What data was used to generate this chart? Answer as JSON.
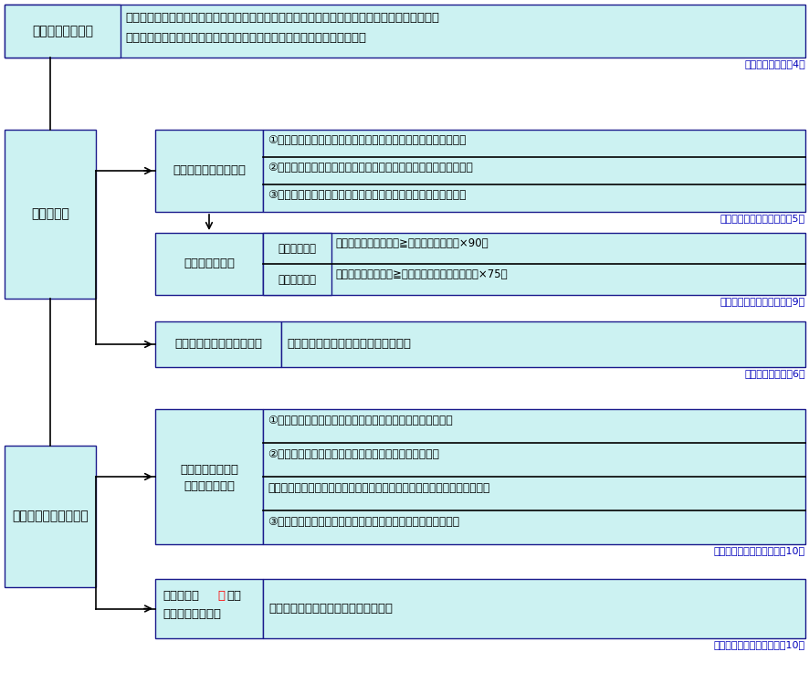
{
  "bg_color": "#ffffff",
  "box_fill": "#ccf2f2",
  "box_edge": "#1a1a8c",
  "text_color": "#000000",
  "ref_color": "#0000bb",
  "arrow_color": "#000000",
  "sections": {
    "lease_def_label": "リース取引とは？",
    "lease_def_text1": "貸手（レッサー）が借手（レッシー）に対して、リース期間にわたり、これを使用収益する権利",
    "lease_def_text2": "を与え、借手は、これに対してリース料を支払う取引のことをいいます。",
    "lease_def_ref": "（リース会計基準4）",
    "finance_label": "ファイナンス・リース",
    "finance_items": [
      "①リース期間の中途において当該契約を解除できないリース取引",
      "②借手が当該物件使用による経済的利益を実質的に享受できる取引",
      "③当該物件使用に伴って発生するコストを実質的に負担する取引"
    ],
    "finance_ref": "（リース会計基準適用指針5）",
    "criteria_label": "具体的判定基準",
    "criteria_key1": "現在価値基準",
    "criteria_val1": "リース料総額現在価値≧見積現金購入金額×90％",
    "criteria_key2": "耐用年数基準",
    "criteria_val2": "解約不能リース期間≧リース物件の経済耐用年数×75％",
    "criteria_ref": "（リース会計基準適用指針9）",
    "operating_label": "オペレーティング・リース",
    "operating_text": "ファイナンス・リース取引以外の取引",
    "operating_ref": "（リース会計基準6）",
    "lease_torihiki_label": "リース取引",
    "finance_lease_label": "ファイナンス・リース",
    "ownership_transfer_label1": "所有権移転ファイ",
    "ownership_transfer_label2": "ナンス・リース",
    "ownership_transfer_items": [
      "①リース期間終了後、リース物件の所有権が借手に移転する",
      "②リース期間終了後、著しく有利な価格で買い取る権利",
      "「割安購入選択権」が与えられており、その行使が確実と見込まれるもの",
      "③物件が特別仕様のため、他に再リースすることが困難な場合"
    ],
    "ownership_transfer_ref": "（リース会計基準適用指針10）",
    "ownership_outside_label_pre": "所有権移転",
    "ownership_outside_label_red": "外",
    "ownership_outside_label_mid": "ファ",
    "ownership_outside_label_post": "イナンス・リース",
    "ownership_outside_text": "上記以外のファイナンス・リース取引",
    "ownership_outside_ref": "（リース会計基準適用指針10）"
  }
}
